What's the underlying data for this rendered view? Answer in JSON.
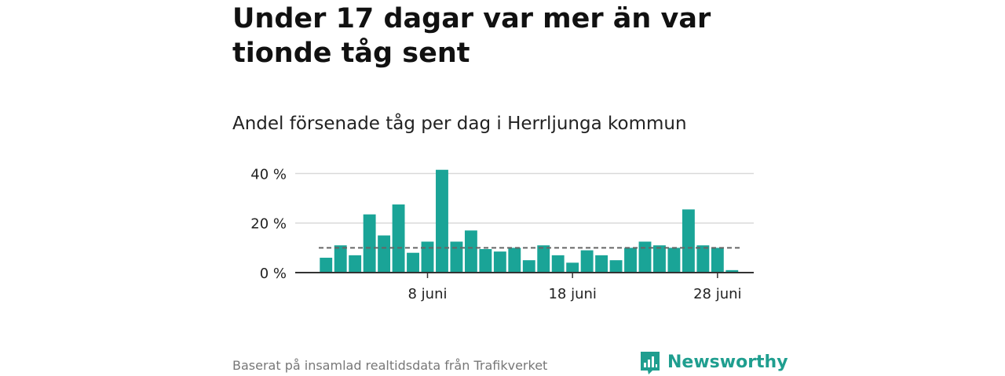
{
  "header": {
    "title": "Under 17 dagar var mer än var tionde tåg sent",
    "subtitle": "Andel försenade tåg per dag i Herrljunga kommun"
  },
  "footer": {
    "source": "Baserat på insamlad realtidsdata från Trafikverket",
    "brand": "Newsworthy",
    "brand_icon": "bar-chart-speech-bubble-icon"
  },
  "colors": {
    "bar": "#1aa497",
    "reference_line": "#666666",
    "grid": "#d9d9d9",
    "axis": "#333333",
    "brand": "#1f9e8f"
  },
  "chart_data": {
    "type": "bar",
    "x": [
      "2024-06-01",
      "2024-06-02",
      "2024-06-03",
      "2024-06-04",
      "2024-06-05",
      "2024-06-06",
      "2024-06-07",
      "2024-06-08",
      "2024-06-09",
      "2024-06-10",
      "2024-06-11",
      "2024-06-12",
      "2024-06-13",
      "2024-06-14",
      "2024-06-15",
      "2024-06-16",
      "2024-06-17",
      "2024-06-18",
      "2024-06-19",
      "2024-06-20",
      "2024-06-21",
      "2024-06-22",
      "2024-06-23",
      "2024-06-24",
      "2024-06-25",
      "2024-06-26",
      "2024-06-27",
      "2024-06-28",
      "2024-06-29",
      "2024-06-30"
    ],
    "values": [
      6,
      11,
      7,
      23.5,
      15,
      27.5,
      8,
      12.5,
      41.5,
      12.5,
      17,
      9.5,
      8.5,
      10,
      5,
      11,
      7,
      4,
      9,
      7,
      5,
      10,
      12.5,
      11,
      10,
      25.5,
      11,
      10,
      1,
      null
    ],
    "reference_line": {
      "value": 10,
      "style": "dashed"
    },
    "ylim": [
      0,
      43
    ],
    "y_ticks": [
      0,
      20,
      40
    ],
    "y_tick_labels": [
      "0 %",
      "20 %",
      "40 %"
    ],
    "x_ticks": [
      "2024-06-08",
      "2024-06-18",
      "2024-06-28"
    ],
    "x_tick_labels": [
      "8 juni",
      "18 juni",
      "28 juni"
    ],
    "grid": true,
    "xlabel": "",
    "ylabel": ""
  }
}
